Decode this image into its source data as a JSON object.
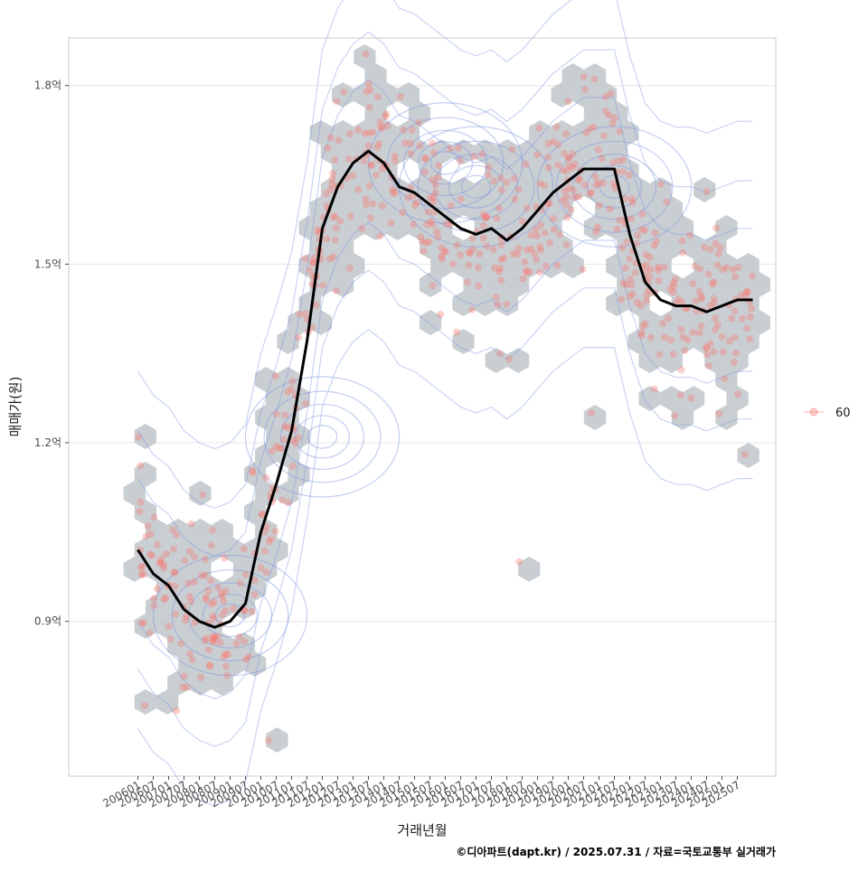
{
  "chart_data": {
    "type": "scatter",
    "xlabel": "거래년월",
    "ylabel": "매매가(원)",
    "caption": "©디아파트(dapt.kr) / 2025.07.31 / 자료=국토교통부 실거래가",
    "x_ticks": [
      "200601",
      "200607",
      "200701",
      "200707",
      "200801",
      "200807",
      "200901",
      "200907",
      "201001",
      "201007",
      "201101",
      "201107",
      "201201",
      "201207",
      "201301",
      "201307",
      "201401",
      "201407",
      "201501",
      "201507",
      "201601",
      "201607",
      "201701",
      "201707",
      "201801",
      "201807",
      "201901",
      "201907",
      "202001",
      "202007",
      "202101",
      "202107",
      "202201",
      "202207",
      "202301",
      "202307",
      "202401",
      "202407",
      "202501",
      "202507"
    ],
    "y_ticks": [
      {
        "value": 0.9,
        "label": "0.9억"
      },
      {
        "value": 1.2,
        "label": "1.2억"
      },
      {
        "value": 1.5,
        "label": "1.5억"
      },
      {
        "value": 1.8,
        "label": "1.8억"
      }
    ],
    "ylim": [
      0.64,
      1.88
    ],
    "xlim": [
      -4.5,
      41.5
    ],
    "grid": true,
    "legend": {
      "position": "right",
      "entries": [
        {
          "label": "60",
          "color": "#f8766d"
        }
      ]
    },
    "colors": {
      "points": "#f8766d",
      "hex": "#bfc5cb",
      "contour": "#7b93e0",
      "trend": "#000000",
      "grid": "#e5e5e5",
      "panel_border": "#cccccc"
    },
    "series": [
      {
        "type": "trend",
        "x": [
          0,
          1,
          2,
          3,
          4,
          5,
          6,
          7,
          8,
          9,
          10,
          11,
          12,
          13,
          14,
          15,
          16,
          17,
          18,
          19,
          20,
          21,
          22,
          23,
          24,
          25,
          26,
          27,
          28,
          29,
          30,
          31,
          32,
          33,
          34,
          35,
          36,
          37,
          38,
          39,
          40
        ],
        "values": [
          1.02,
          0.98,
          0.96,
          0.92,
          0.9,
          0.89,
          0.9,
          0.93,
          1.05,
          1.13,
          1.22,
          1.37,
          1.56,
          1.63,
          1.67,
          1.69,
          1.67,
          1.63,
          1.62,
          1.6,
          1.58,
          1.56,
          1.55,
          1.56,
          1.54,
          1.56,
          1.59,
          1.62,
          1.64,
          1.66,
          1.66,
          1.66,
          1.55,
          1.47,
          1.44,
          1.43,
          1.43,
          1.42,
          1.43,
          1.44,
          1.44
        ]
      }
    ],
    "density_centers": [
      {
        "x": 6,
        "y": 0.91
      },
      {
        "x": 12,
        "y": 1.21
      },
      {
        "x": 20,
        "y": 1.67
      },
      {
        "x": 22,
        "y": 1.63
      },
      {
        "x": 31,
        "y": 1.63
      }
    ],
    "point_clusters": [
      {
        "x": 0.7,
        "y": 1.0
      },
      {
        "x": 3.0,
        "y": 0.95
      },
      {
        "x": 5.5,
        "y": 0.89
      },
      {
        "x": 8.0,
        "y": 0.93
      },
      {
        "x": 10.5,
        "y": 1.13
      },
      {
        "x": 12.0,
        "y": 1.24
      },
      {
        "x": 13.5,
        "y": 1.42
      },
      {
        "x": 15.5,
        "y": 1.62
      },
      {
        "x": 18.5,
        "y": 1.7
      },
      {
        "x": 21.0,
        "y": 1.63
      },
      {
        "x": 24.0,
        "y": 1.57
      },
      {
        "x": 27.5,
        "y": 1.53
      },
      {
        "x": 31.5,
        "y": 1.65
      },
      {
        "x": 35.0,
        "y": 1.48
      },
      {
        "x": 38.5,
        "y": 1.4
      }
    ],
    "outlier_points": [
      {
        "x": 24.8,
        "y": 1.0
      },
      {
        "x": 39.5,
        "y": 1.18
      },
      {
        "x": 8.5,
        "y": 0.7
      },
      {
        "x": 2.5,
        "y": 0.75
      },
      {
        "x": 29.5,
        "y": 1.25
      },
      {
        "x": 33.0,
        "y": 1.4
      }
    ]
  }
}
